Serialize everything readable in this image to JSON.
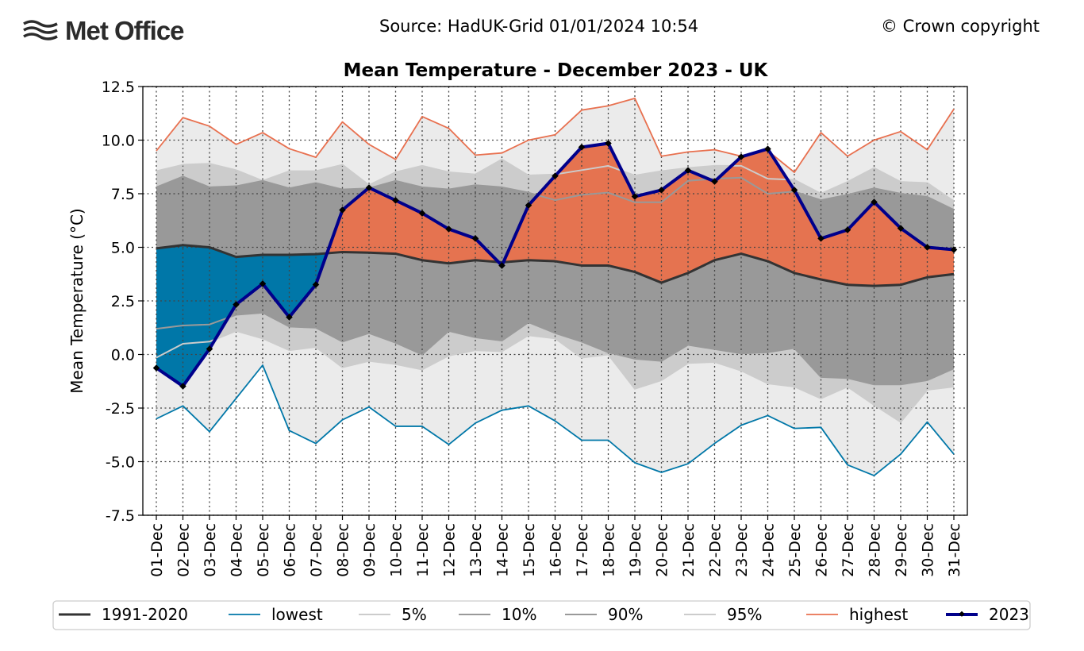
{
  "header": {
    "logo_text": "Met Office",
    "source": "Source: HadUK-Grid 01/01/2024 10:54",
    "copyright": "© Crown copyright"
  },
  "colors": {
    "highest": "#e8704f",
    "lowest": "#0077a8",
    "mean": "#333333",
    "y2023": "#00008b",
    "band_outer": "#ebebeb",
    "band_5_95": "#cccccc",
    "band_10_90": "#999999",
    "above_fill": "#e57350",
    "below_fill": "#0077a8"
  },
  "chart_data": {
    "type": "line",
    "title": "Mean Temperature - December 2023 - UK",
    "ylabel": "Mean Temperature (°C)",
    "xlabel": "",
    "ylim": [
      -7.5,
      12.5
    ],
    "yticks": [
      "12.5",
      "10.0",
      "7.5",
      "5.0",
      "2.5",
      "0.0",
      "-2.5",
      "-5.0",
      "-7.5"
    ],
    "grid": true,
    "legend_placement": "bottom",
    "categories": [
      "01-Dec",
      "02-Dec",
      "03-Dec",
      "04-Dec",
      "05-Dec",
      "06-Dec",
      "07-Dec",
      "08-Dec",
      "09-Dec",
      "10-Dec",
      "11-Dec",
      "12-Dec",
      "13-Dec",
      "14-Dec",
      "15-Dec",
      "16-Dec",
      "17-Dec",
      "18-Dec",
      "19-Dec",
      "20-Dec",
      "21-Dec",
      "22-Dec",
      "23-Dec",
      "24-Dec",
      "25-Dec",
      "26-Dec",
      "27-Dec",
      "28-Dec",
      "29-Dec",
      "30-Dec",
      "31-Dec"
    ],
    "series": [
      {
        "name": "1991-2020",
        "values": [
          4.95,
          5.1,
          5.0,
          4.55,
          4.65,
          4.65,
          4.68,
          4.78,
          4.75,
          4.7,
          4.4,
          4.25,
          4.4,
          4.3,
          4.4,
          4.35,
          4.15,
          4.15,
          3.85,
          3.35,
          3.8,
          4.4,
          4.7,
          4.35,
          3.8,
          3.5,
          3.25,
          3.2,
          3.25,
          3.6,
          3.75
        ]
      },
      {
        "name": "lowest",
        "values": [
          -3.0,
          -2.4,
          -3.6,
          -2.05,
          -0.5,
          -3.55,
          -4.15,
          -3.05,
          -2.45,
          -3.35,
          -3.35,
          -4.2,
          -3.2,
          -2.6,
          -2.4,
          -3.1,
          -4.0,
          -4.0,
          -5.05,
          -5.5,
          -5.1,
          -4.15,
          -3.3,
          -2.85,
          -3.45,
          -3.4,
          -5.15,
          -5.65,
          -4.65,
          -3.15,
          -4.65
        ]
      },
      {
        "name": "5%",
        "values": [
          -0.15,
          0.5,
          0.6,
          1.1,
          0.75,
          0.2,
          0.35,
          -0.6,
          -0.3,
          -0.45,
          -0.7,
          -0.05,
          0.2,
          0.15,
          0.9,
          0.75,
          -0.15,
          0.0,
          -1.6,
          -1.2,
          -0.4,
          -0.35,
          -0.75,
          -1.35,
          -1.5,
          -2.05,
          -1.5,
          -2.35,
          -3.15,
          -1.65,
          -1.5
        ]
      },
      {
        "name": "10%",
        "values": [
          1.2,
          1.35,
          1.4,
          1.85,
          1.95,
          1.3,
          1.25,
          0.6,
          1.0,
          0.55,
          0.0,
          1.1,
          0.8,
          0.65,
          1.5,
          1.0,
          0.6,
          0.1,
          -0.2,
          -0.3,
          0.45,
          0.25,
          0.05,
          0.1,
          0.3,
          -1.05,
          -1.1,
          -1.4,
          -1.4,
          -1.2,
          -0.65
        ]
      },
      {
        "name": "90%",
        "values": [
          7.8,
          8.3,
          7.8,
          7.85,
          8.1,
          7.75,
          8.0,
          7.7,
          7.75,
          8.1,
          7.8,
          7.7,
          7.9,
          7.8,
          7.55,
          7.2,
          7.45,
          7.55,
          7.1,
          7.1,
          8.1,
          8.2,
          8.25,
          7.5,
          7.6,
          7.2,
          7.45,
          7.75,
          7.5,
          7.35,
          6.75
        ]
      },
      {
        "name": "95%",
        "values": [
          8.55,
          8.85,
          8.9,
          8.6,
          8.1,
          8.55,
          8.55,
          8.85,
          7.9,
          8.5,
          8.8,
          8.5,
          8.4,
          9.1,
          8.35,
          8.4,
          8.6,
          8.8,
          8.35,
          8.55,
          8.7,
          8.8,
          8.8,
          8.2,
          8.15,
          7.5,
          8.05,
          8.7,
          8.05,
          8.0,
          7.15
        ]
      },
      {
        "name": "highest",
        "values": [
          9.5,
          11.05,
          10.65,
          9.8,
          10.35,
          9.6,
          9.2,
          10.85,
          9.8,
          9.1,
          11.1,
          10.55,
          9.3,
          9.4,
          10.0,
          10.25,
          11.4,
          11.6,
          11.95,
          9.25,
          9.45,
          9.55,
          9.25,
          9.5,
          8.5,
          10.35,
          9.25,
          10.0,
          10.4,
          9.55,
          11.45
        ]
      },
      {
        "name": "2023",
        "values": [
          -0.63,
          -1.48,
          0.26,
          2.33,
          3.3,
          1.74,
          3.26,
          6.74,
          7.78,
          7.19,
          6.59,
          5.85,
          5.41,
          4.15,
          6.96,
          8.33,
          9.67,
          9.85,
          7.37,
          7.67,
          8.59,
          8.07,
          9.22,
          9.59,
          7.67,
          5.41,
          5.81,
          7.11,
          5.89,
          5.0,
          4.89
        ]
      }
    ],
    "legend": [
      "1991-2020",
      "lowest",
      "5%",
      "10%",
      "90%",
      "95%",
      "highest",
      "2023"
    ]
  }
}
